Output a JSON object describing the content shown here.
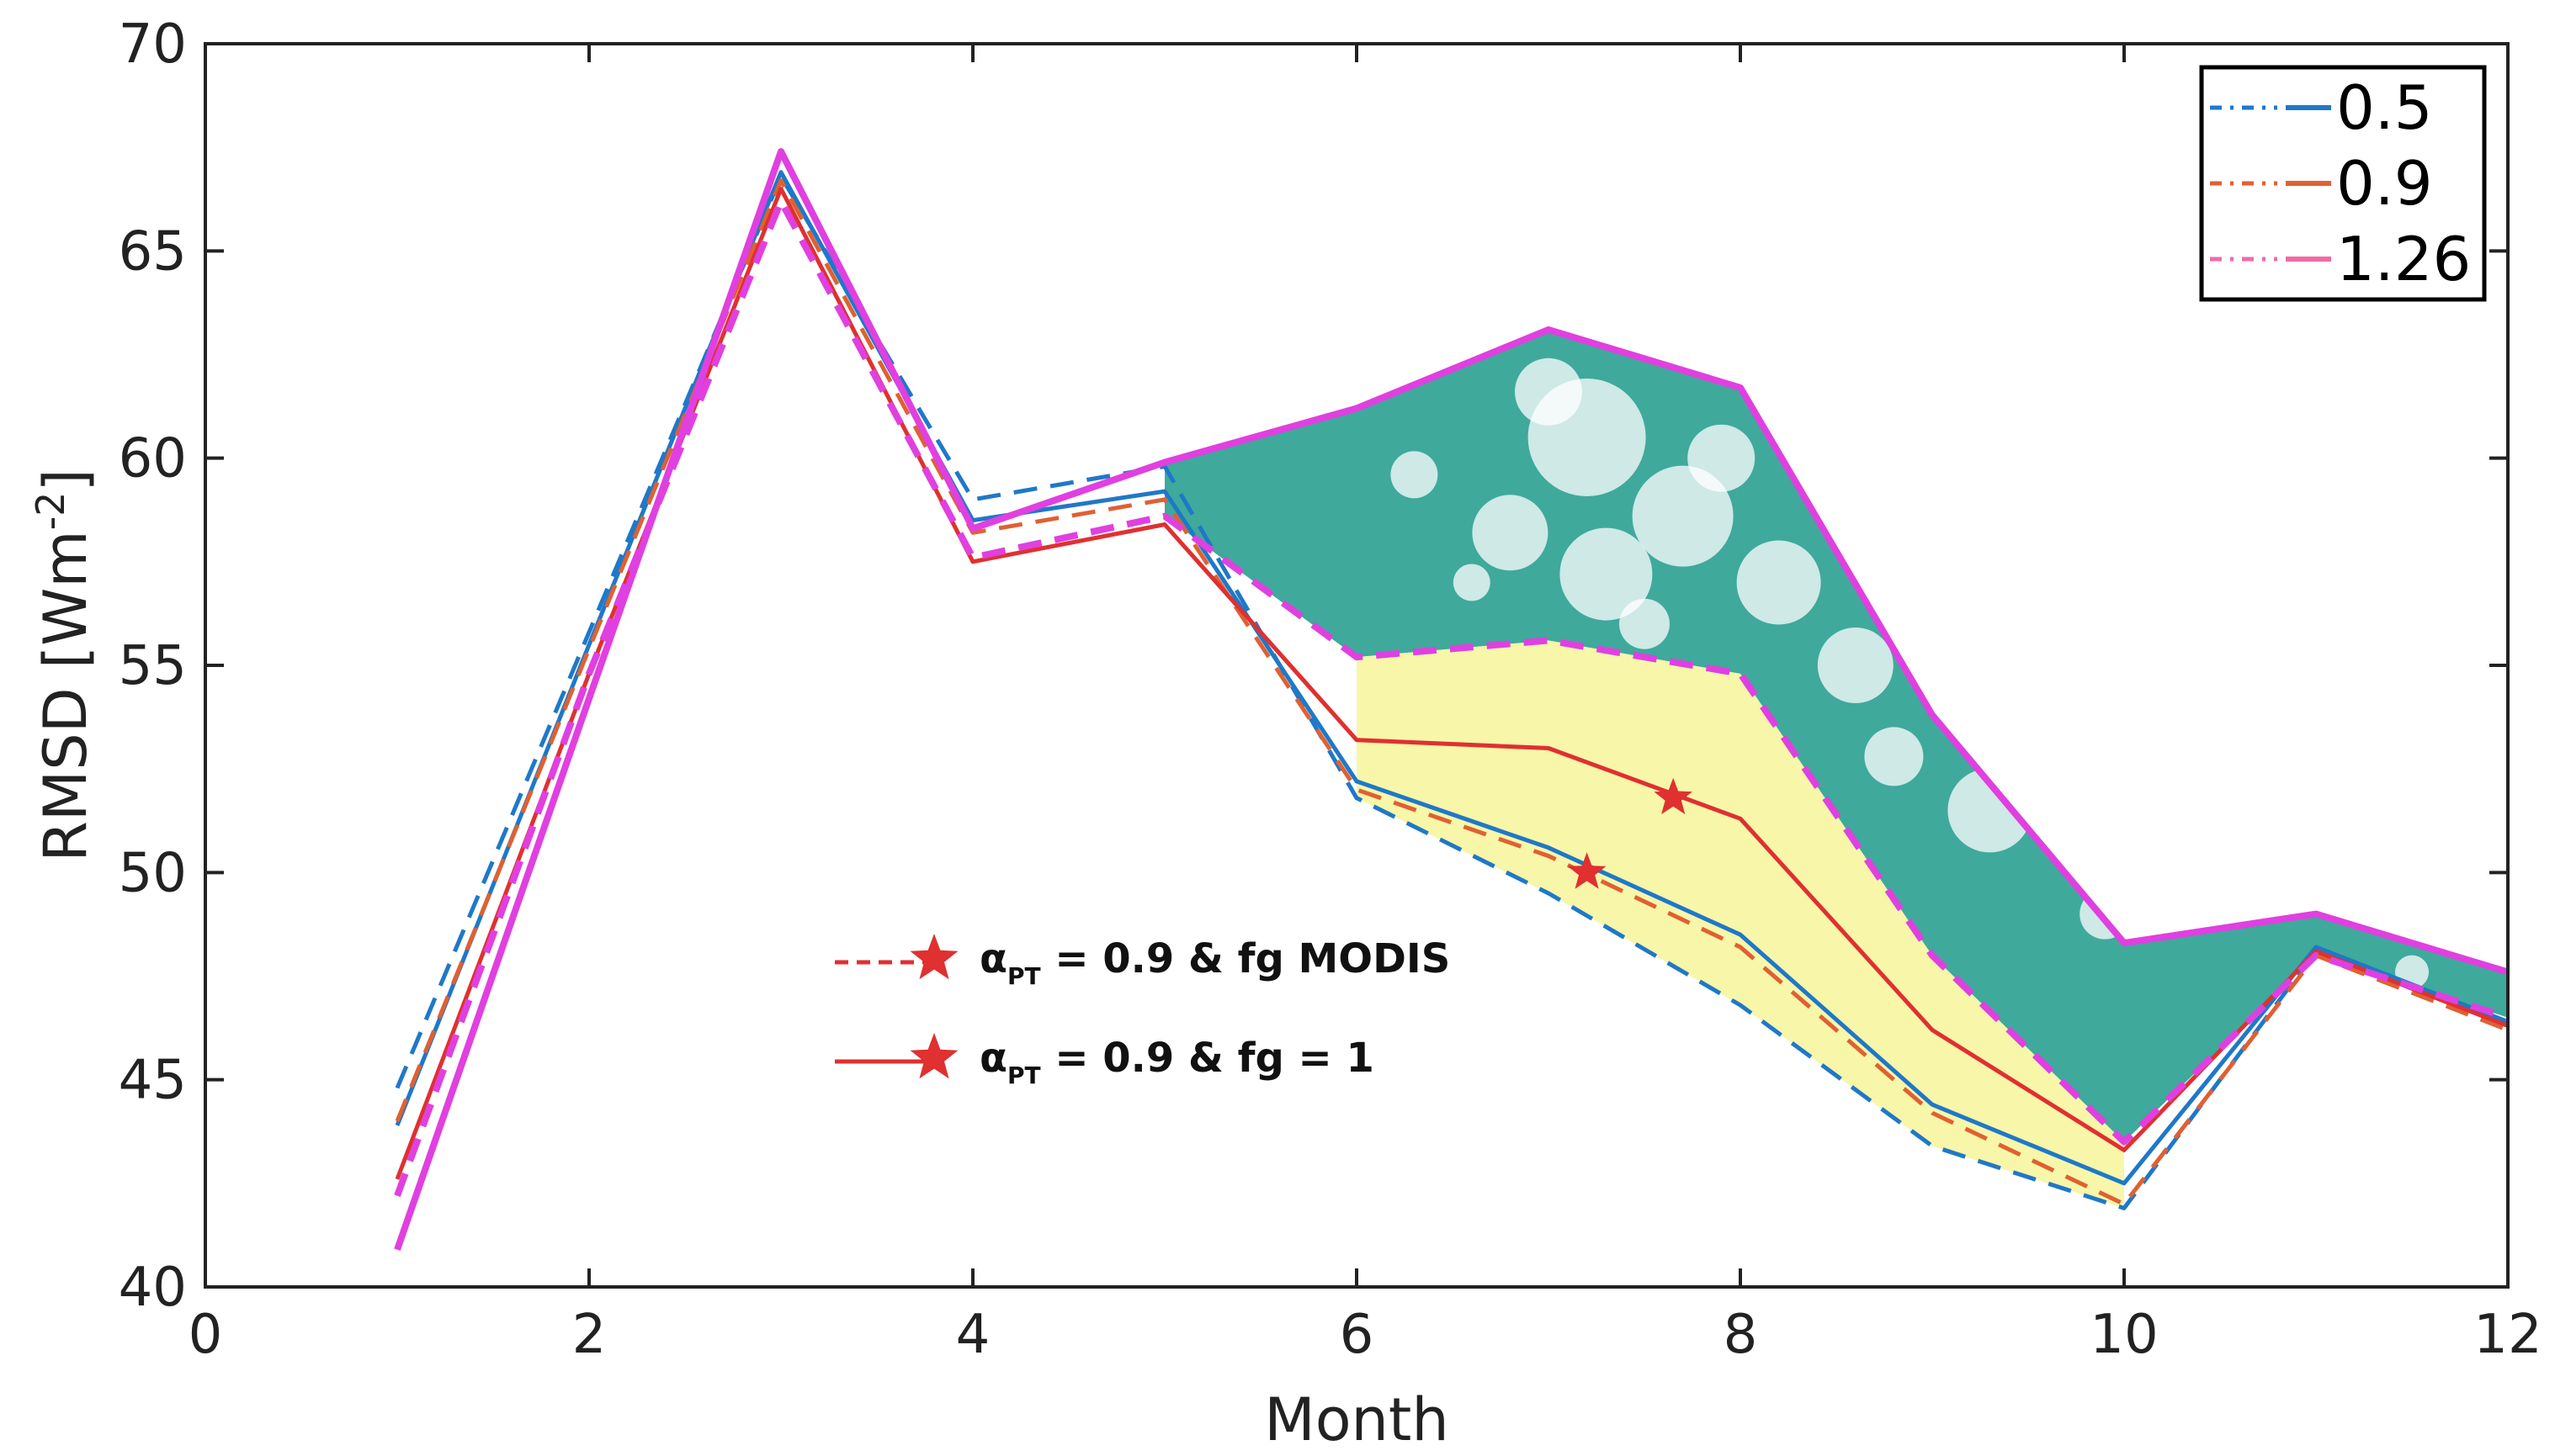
{
  "chart_data": {
    "type": "line",
    "title": "",
    "xlabel": "Month",
    "ylabel": "RMSD [Wm-2]",
    "ylabel_parts": {
      "main": "RMSD [Wm",
      "sup": "-2",
      "close": "]"
    },
    "xlim": [
      0,
      12
    ],
    "ylim": [
      40,
      70
    ],
    "xticks": [
      "0",
      "2",
      "4",
      "6",
      "8",
      "10",
      "12"
    ],
    "yticks": [
      "40",
      "45",
      "50",
      "55",
      "60",
      "65",
      "70"
    ],
    "x": [
      1,
      2,
      3,
      4,
      5,
      6,
      7,
      8,
      9,
      10,
      11,
      12
    ],
    "series": [
      {
        "name": "0.5 dashed",
        "color": "#1f78c8",
        "style": "dashed",
        "values": [
          44.8,
          55.8,
          66.8,
          59.0,
          59.8,
          51.8,
          49.5,
          46.8,
          43.4,
          41.9,
          48.1,
          46.3
        ]
      },
      {
        "name": "0.5 solid",
        "color": "#1f78c8",
        "style": "solid",
        "values": [
          43.9,
          55.5,
          66.9,
          58.5,
          59.2,
          52.2,
          50.6,
          48.5,
          44.4,
          42.5,
          48.2,
          46.4
        ]
      },
      {
        "name": "0.9 dashed",
        "color": "#e06032",
        "style": "dashed",
        "values": [
          44.0,
          55.4,
          66.7,
          58.2,
          59.0,
          52.0,
          50.4,
          48.2,
          44.2,
          42.0,
          48.0,
          46.2
        ]
      },
      {
        "name": "0.9 solid",
        "color": "#e03030",
        "style": "solid",
        "values": [
          42.6,
          54.8,
          66.5,
          57.5,
          58.4,
          53.2,
          53.0,
          51.3,
          46.2,
          43.3,
          48.1,
          46.3
        ]
      },
      {
        "name": "1.26 dashed",
        "color": "#e040e0",
        "style": "dashed",
        "values": [
          42.2,
          54.8,
          66.2,
          57.6,
          58.6,
          55.2,
          55.6,
          54.8,
          48.0,
          43.5,
          48.0,
          46.5
        ]
      },
      {
        "name": "1.26 solid",
        "color": "#e040e0",
        "style": "solid",
        "values": [
          40.9,
          54.2,
          67.4,
          58.3,
          59.9,
          61.2,
          63.1,
          61.7,
          53.8,
          48.3,
          49.0,
          47.6
        ]
      }
    ],
    "bands": [
      {
        "name": "yellow band",
        "color": "#f6f59a",
        "upper": "1.26 dashed",
        "lower": "0.5 dashed",
        "from": 6,
        "to": 10
      },
      {
        "name": "teal band",
        "color": "#2aa091",
        "upper": "1.26 solid",
        "lower": "1.26 dashed",
        "from": 5,
        "to": 12
      }
    ],
    "star_markers": [
      {
        "name": "star-fg-modis",
        "x": 7.2,
        "y": 50.0,
        "color": "#e03030"
      },
      {
        "name": "star-fg-1",
        "x": 7.65,
        "y": 51.8,
        "color": "#e03030"
      }
    ],
    "legend": {
      "position": "top-right",
      "items": [
        {
          "label": "0.5",
          "color": "#1f78c8"
        },
        {
          "label": "0.9",
          "color": "#e06032"
        },
        {
          "label": "1.26",
          "color": "#f06aa8"
        }
      ]
    },
    "annotations": [
      {
        "greek": "α",
        "sub": "PT",
        "text": " = 0.9 & fg MODIS",
        "line": "dashed",
        "color": "#e03030"
      },
      {
        "greek": "α",
        "sub": "PT",
        "text": " = 0.9 & fg = 1",
        "line": "solid",
        "color": "#e03030"
      }
    ]
  }
}
